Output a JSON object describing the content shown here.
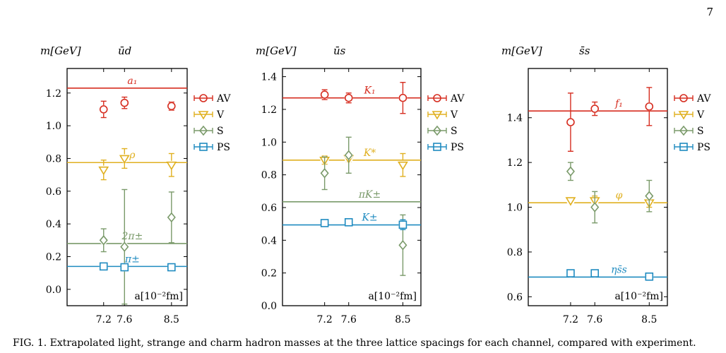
{
  "page": {
    "page_number": "7",
    "caption": "FIG. 1. Extrapolated light, strange and charm hadron masses at the three lattice spacings for each channel, compared with experiment."
  },
  "colors": {
    "AV": "#d62d20",
    "V": "#e0b020",
    "S": "#7a9a6a",
    "PS": "#1f8bc0"
  },
  "chart_data": [
    {
      "type": "scatter",
      "title": "ūd",
      "ylabel": "m[GeV]",
      "xlabel": "a[10⁻²fm]",
      "xlim": [
        6.5,
        8.8
      ],
      "ylim": [
        -0.1,
        1.35
      ],
      "xticks": [
        7.2,
        7.6,
        8.5
      ],
      "xtick_labels": [
        "7.2",
        "7.6",
        "8.5"
      ],
      "yticks": [
        0.0,
        0.2,
        0.4,
        0.6,
        0.8,
        1.0,
        1.2
      ],
      "ytick_labels": [
        "0.0",
        "0.2",
        "0.4",
        "0.6",
        "0.8",
        "1.0",
        "1.2"
      ],
      "legend_position": "right",
      "series": [
        {
          "name": "AV",
          "marker": "circle",
          "x": [
            7.2,
            7.6,
            8.5
          ],
          "y": [
            1.1,
            1.14,
            1.12
          ],
          "yerr": [
            0.05,
            0.035,
            0.025
          ]
        },
        {
          "name": "V",
          "marker": "triangle-down",
          "x": [
            7.2,
            7.6,
            8.5
          ],
          "y": [
            0.73,
            0.8,
            0.76
          ],
          "yerr": [
            0.06,
            0.06,
            0.07
          ]
        },
        {
          "name": "S",
          "marker": "diamond",
          "x": [
            7.2,
            7.6,
            8.5
          ],
          "y": [
            0.3,
            0.26,
            0.44
          ],
          "yerr": [
            0.07,
            0.35,
            0.155
          ]
        },
        {
          "name": "PS",
          "marker": "square",
          "x": [
            7.2,
            7.6,
            8.5
          ],
          "y": [
            0.14,
            0.135,
            0.135
          ],
          "yerr": [
            0.01,
            0.01,
            0.01
          ]
        }
      ],
      "reference_lines": [
        {
          "label": "a₁",
          "value": 1.23,
          "series": "AV",
          "label_x": 7.75
        },
        {
          "label": "ρ",
          "value": 0.775,
          "series": "V",
          "label_x": 7.75
        },
        {
          "label": "2π±",
          "value": 0.28,
          "series": "S",
          "label_x": 7.75
        },
        {
          "label": "π±",
          "value": 0.14,
          "series": "PS",
          "label_x": 7.75
        }
      ]
    },
    {
      "type": "scatter",
      "title": "ūs",
      "ylabel": "m[GeV]",
      "xlabel": "a[10⁻²fm]",
      "xlim": [
        6.5,
        8.8
      ],
      "ylim": [
        0.0,
        1.45
      ],
      "xticks": [
        7.2,
        7.6,
        8.5
      ],
      "xtick_labels": [
        "7.2",
        "7.6",
        "8.5"
      ],
      "yticks": [
        0.0,
        0.2,
        0.4,
        0.6,
        0.8,
        1.0,
        1.2,
        1.4
      ],
      "ytick_labels": [
        "0.0",
        "0.2",
        "0.4",
        "0.6",
        "0.8",
        "1.0",
        "1.2",
        "1.4"
      ],
      "legend_position": "right",
      "series": [
        {
          "name": "AV",
          "marker": "circle",
          "x": [
            7.2,
            7.6,
            8.5
          ],
          "y": [
            1.29,
            1.27,
            1.27
          ],
          "yerr": [
            0.03,
            0.03,
            0.095
          ]
        },
        {
          "name": "V",
          "marker": "triangle-down",
          "x": [
            7.2,
            7.6,
            8.5
          ],
          "y": [
            0.89,
            0.9,
            0.86
          ],
          "yerr": [
            0.025,
            0.02,
            0.07
          ]
        },
        {
          "name": "S",
          "marker": "diamond",
          "x": [
            7.2,
            7.6,
            8.5
          ],
          "y": [
            0.81,
            0.92,
            0.37
          ],
          "yerr": [
            0.1,
            0.11,
            0.185
          ]
        },
        {
          "name": "PS",
          "marker": "square",
          "x": [
            7.2,
            7.6,
            8.5
          ],
          "y": [
            0.505,
            0.51,
            0.495
          ],
          "yerr": [
            0.01,
            0.01,
            0.03
          ]
        }
      ],
      "reference_lines": [
        {
          "label": "K₁",
          "value": 1.27,
          "series": "AV",
          "label_x": 7.95
        },
        {
          "label": "K*",
          "value": 0.89,
          "series": "V",
          "label_x": 7.95
        },
        {
          "label": "πK±",
          "value": 0.635,
          "series": "S",
          "label_x": 7.95
        },
        {
          "label": "K±",
          "value": 0.494,
          "series": "PS",
          "label_x": 7.95
        }
      ]
    },
    {
      "type": "scatter",
      "title": "s̄s",
      "ylabel": "m[GeV]",
      "xlabel": "a[10⁻²fm]",
      "xlim": [
        6.5,
        8.8
      ],
      "ylim": [
        0.56,
        1.62
      ],
      "xticks": [
        7.2,
        7.6,
        8.5
      ],
      "xtick_labels": [
        "7.2",
        "7.6",
        "8.5"
      ],
      "yticks": [
        0.6,
        0.8,
        1.0,
        1.2,
        1.4
      ],
      "ytick_labels": [
        "0.6",
        "0.8",
        "1.0",
        "1.2",
        "1.4"
      ],
      "legend_position": "right",
      "series": [
        {
          "name": "AV",
          "marker": "circle",
          "x": [
            7.2,
            7.6,
            8.5
          ],
          "y": [
            1.38,
            1.44,
            1.45
          ],
          "yerr": [
            0.13,
            0.03,
            0.085
          ]
        },
        {
          "name": "V",
          "marker": "triangle-down",
          "x": [
            7.2,
            7.6,
            8.5
          ],
          "y": [
            1.03,
            1.03,
            1.02
          ],
          "yerr": [
            0.005,
            0.02,
            0.02
          ]
        },
        {
          "name": "S",
          "marker": "diamond",
          "x": [
            7.2,
            7.6,
            8.5
          ],
          "y": [
            1.16,
            1.0,
            1.05
          ],
          "yerr": [
            0.04,
            0.07,
            0.07
          ]
        },
        {
          "name": "PS",
          "marker": "square",
          "x": [
            7.2,
            7.6,
            8.5
          ],
          "y": [
            0.705,
            0.705,
            0.69
          ],
          "yerr": [
            0.01,
            0.01,
            0.01
          ]
        }
      ],
      "reference_lines": [
        {
          "label": "f₁",
          "value": 1.43,
          "series": "AV",
          "label_x": 8.0
        },
        {
          "label": "φ",
          "value": 1.02,
          "series": "V",
          "label_x": 8.0
        },
        {
          "label": "ηs̄s",
          "value": 0.688,
          "series": "PS",
          "label_x": 8.0
        }
      ]
    }
  ]
}
